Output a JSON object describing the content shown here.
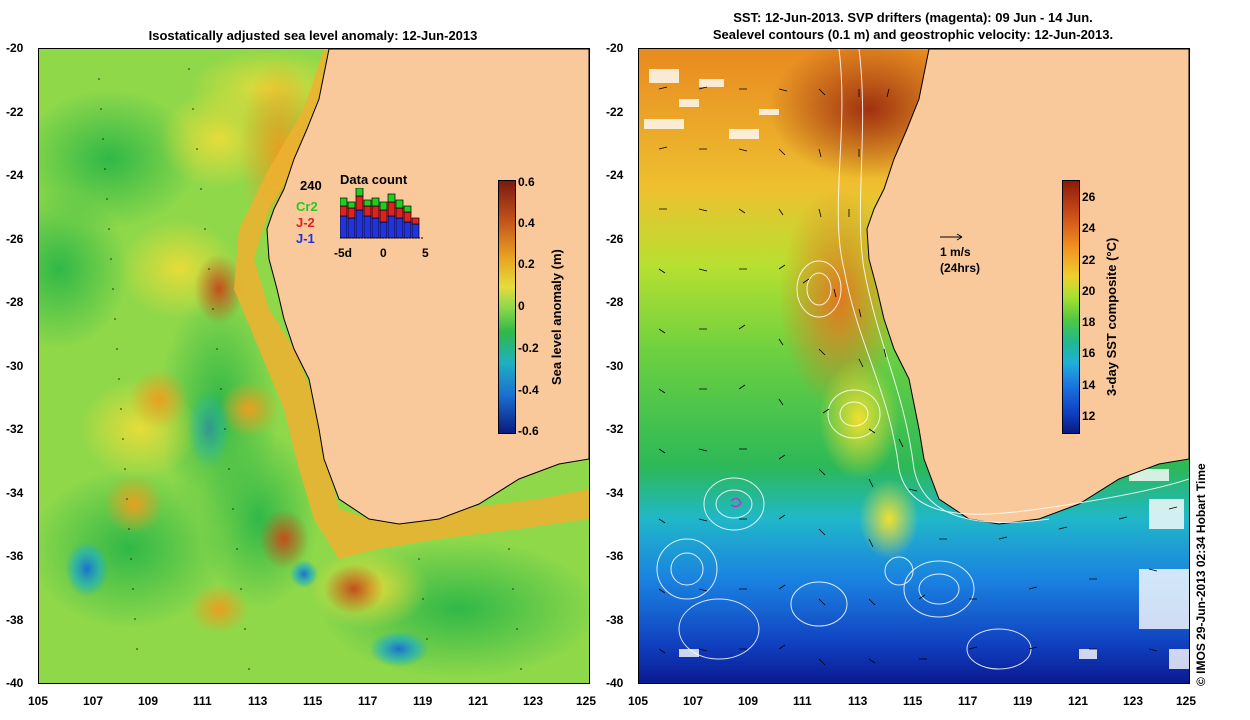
{
  "left": {
    "title": "Isostatically adjusted sea level anomaly: 12-Jun-2013",
    "colorbar_label": "Sea level anomaly (m)",
    "colorbar_ticks": [
      "0.6",
      "0.4",
      "0.2",
      "0",
      "-0.2",
      "-0.4",
      "-0.6"
    ],
    "hist": {
      "title": "Data count",
      "count_label": "240",
      "legend": [
        {
          "name": "Cr2",
          "color": "#22cc22"
        },
        {
          "name": "J-2",
          "color": "#dd2222"
        },
        {
          "name": "J-1",
          "color": "#2233dd"
        }
      ],
      "xticks": [
        "-5d",
        "0",
        "5"
      ]
    }
  },
  "right": {
    "title_line1": "SST: 12-Jun-2013. SVP drifters (magenta): 09 Jun - 14 Jun.",
    "title_line2": "Sealevel contours (0.1 m) and geostrophic velocity: 12-Jun-2013.",
    "colorbar_label": "3-day SST composite (°C)",
    "colorbar_ticks": [
      "26",
      "24",
      "22",
      "20",
      "18",
      "16",
      "14",
      "12"
    ],
    "scale_arrow_label1": "1 m/s",
    "scale_arrow_label2": "(24hrs)"
  },
  "axes": {
    "lat_ticks": [
      "-20",
      "-22",
      "-24",
      "-26",
      "-28",
      "-30",
      "-32",
      "-34",
      "-36",
      "-38",
      "-40"
    ],
    "lon_ticks": [
      "105",
      "107",
      "109",
      "111",
      "113",
      "115",
      "117",
      "119",
      "121",
      "123",
      "125"
    ]
  },
  "credit": "© IMOS 29-Jun-2013 02:34 Hobart Time",
  "colors": {
    "land": "#f9c89b",
    "frame": "#000000"
  }
}
